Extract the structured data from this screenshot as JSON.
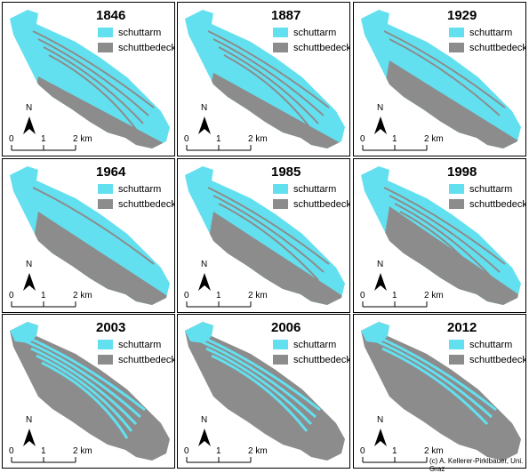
{
  "legend": {
    "schuttarm_label": "schuttarm",
    "schuttbedeckt_label": "schuttbedeckt",
    "schuttarm_color": "#63e0ef",
    "schuttbedeckt_color": "#8c8c8c"
  },
  "north_label": "N",
  "scale": {
    "tick0": "0",
    "tick1": "1",
    "tick2": "2 km"
  },
  "panels": [
    {
      "year": "1846"
    },
    {
      "year": "1887"
    },
    {
      "year": "1929"
    },
    {
      "year": "1964"
    },
    {
      "year": "1985"
    },
    {
      "year": "1998"
    },
    {
      "year": "2003"
    },
    {
      "year": "2006"
    },
    {
      "year": "2012"
    }
  ],
  "credit": "(c) A. Kellerer-Pirklbauer, Uni. Graz"
}
